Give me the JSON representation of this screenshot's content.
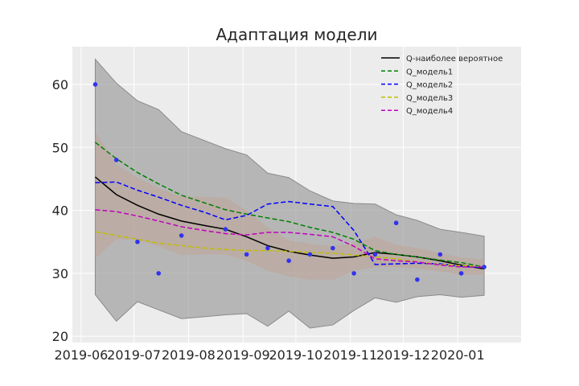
{
  "chart_data": {
    "type": "line",
    "title": "Адаптация модели",
    "xlabel": "",
    "ylabel": "",
    "ylim": [
      19,
      66
    ],
    "xlim": [
      "2019-05-27",
      "2020-02-06"
    ],
    "grid": true,
    "legend_position": "top-right",
    "x_tick_labels": [
      "2019-06",
      "2019-07",
      "2019-08",
      "2019-09",
      "2019-10",
      "2019-11",
      "2019-12",
      "2020-01"
    ],
    "x_tick_dates": [
      "2019-06-01",
      "2019-07-01",
      "2019-08-01",
      "2019-09-01",
      "2019-10-01",
      "2019-11-01",
      "2019-12-01",
      "2020-01-01"
    ],
    "y_ticks": [
      20,
      30,
      40,
      50,
      60
    ],
    "x": [
      "2019-06-09",
      "2019-06-21",
      "2019-07-03",
      "2019-07-15",
      "2019-07-28",
      "2019-08-10",
      "2019-08-22",
      "2019-09-03",
      "2019-09-15",
      "2019-09-27",
      "2019-10-09",
      "2019-10-22",
      "2019-11-03",
      "2019-11-15",
      "2019-11-27",
      "2019-12-09",
      "2019-12-22",
      "2020-01-03",
      "2020-01-16"
    ],
    "observed": {
      "color": "#3333ee",
      "values": [
        60,
        48,
        35,
        30,
        36,
        null,
        37,
        33,
        34,
        32,
        33,
        34,
        30,
        33,
        38,
        29,
        33,
        30,
        31
      ]
    },
    "band_outer": {
      "color": "#999999",
      "upper": [
        64,
        60.2,
        57.4,
        56,
        52.5,
        51.1,
        49.8,
        48.8,
        45.9,
        45.2,
        43.1,
        41.5,
        41.1,
        41,
        39.3,
        38.4,
        37,
        36.5,
        35.9
      ],
      "lower": [
        26.6,
        22.4,
        25.5,
        24.2,
        22.8,
        23.1,
        23.4,
        23.6,
        21.6,
        24,
        21.3,
        21.8,
        24.1,
        26.1,
        25.4,
        26.3,
        26.6,
        26.2,
        26.5
      ]
    },
    "band_inner": {
      "color": "#c2a090",
      "upper": [
        52.5,
        47.3,
        45.2,
        43.5,
        42.2,
        42.1,
        42,
        40,
        37.3,
        35.2,
        34.7,
        34.3,
        34.8,
        35.8,
        34.5,
        34,
        33.2,
        32.5,
        32.2
      ],
      "lower": [
        32.4,
        35.4,
        35.3,
        34.3,
        32.9,
        33,
        33,
        32,
        30.4,
        29.5,
        29,
        29,
        30.4,
        31,
        31,
        30.8,
        30.3,
        29.8,
        29.8
      ]
    },
    "series": [
      {
        "name": "Q-наиболее вероятное",
        "color": "#000000",
        "dash": "solid",
        "values": [
          45.3,
          42.5,
          40.8,
          39.4,
          38.3,
          37.6,
          37,
          35.8,
          34.4,
          33.5,
          32.9,
          32.4,
          32.6,
          33.3,
          33,
          32.6,
          32,
          31.3,
          30.7
        ]
      },
      {
        "name": "Q_модель1",
        "color": "#008000",
        "dash": "dashed",
        "values": [
          50.8,
          48.2,
          46,
          44.2,
          42.4,
          41.2,
          40.1,
          39.4,
          38.8,
          38.2,
          37.3,
          36.5,
          35.4,
          33.6,
          33,
          32.6,
          32.1,
          31.7,
          31
        ]
      },
      {
        "name": "Q_модель2",
        "color": "#0000ff",
        "dash": "dashed",
        "values": [
          44.4,
          44.5,
          43.2,
          42.1,
          40.8,
          39.7,
          38.5,
          39.2,
          41,
          41.4,
          41,
          40.6,
          36.8,
          31.4,
          31.5,
          31.6,
          31.5,
          31.1,
          30.9
        ]
      },
      {
        "name": "Q_модель3",
        "color": "#bfbf00",
        "dash": "dashed",
        "values": [
          36.6,
          36,
          35.4,
          34.8,
          34.4,
          34,
          33.8,
          33.6,
          33.6,
          33.5,
          33.3,
          33.2,
          32.9,
          32.6,
          32.3,
          31.8,
          31.4,
          31.2,
          31
        ]
      },
      {
        "name": "Q_модель4",
        "color": "#c000c0",
        "dash": "dashed",
        "values": [
          40.1,
          39.8,
          39.1,
          38.3,
          37.4,
          36.8,
          36.3,
          36.1,
          36.5,
          36.5,
          36.2,
          35.8,
          34.3,
          32.3,
          32,
          31.8,
          31.3,
          31,
          31
        ]
      }
    ]
  }
}
